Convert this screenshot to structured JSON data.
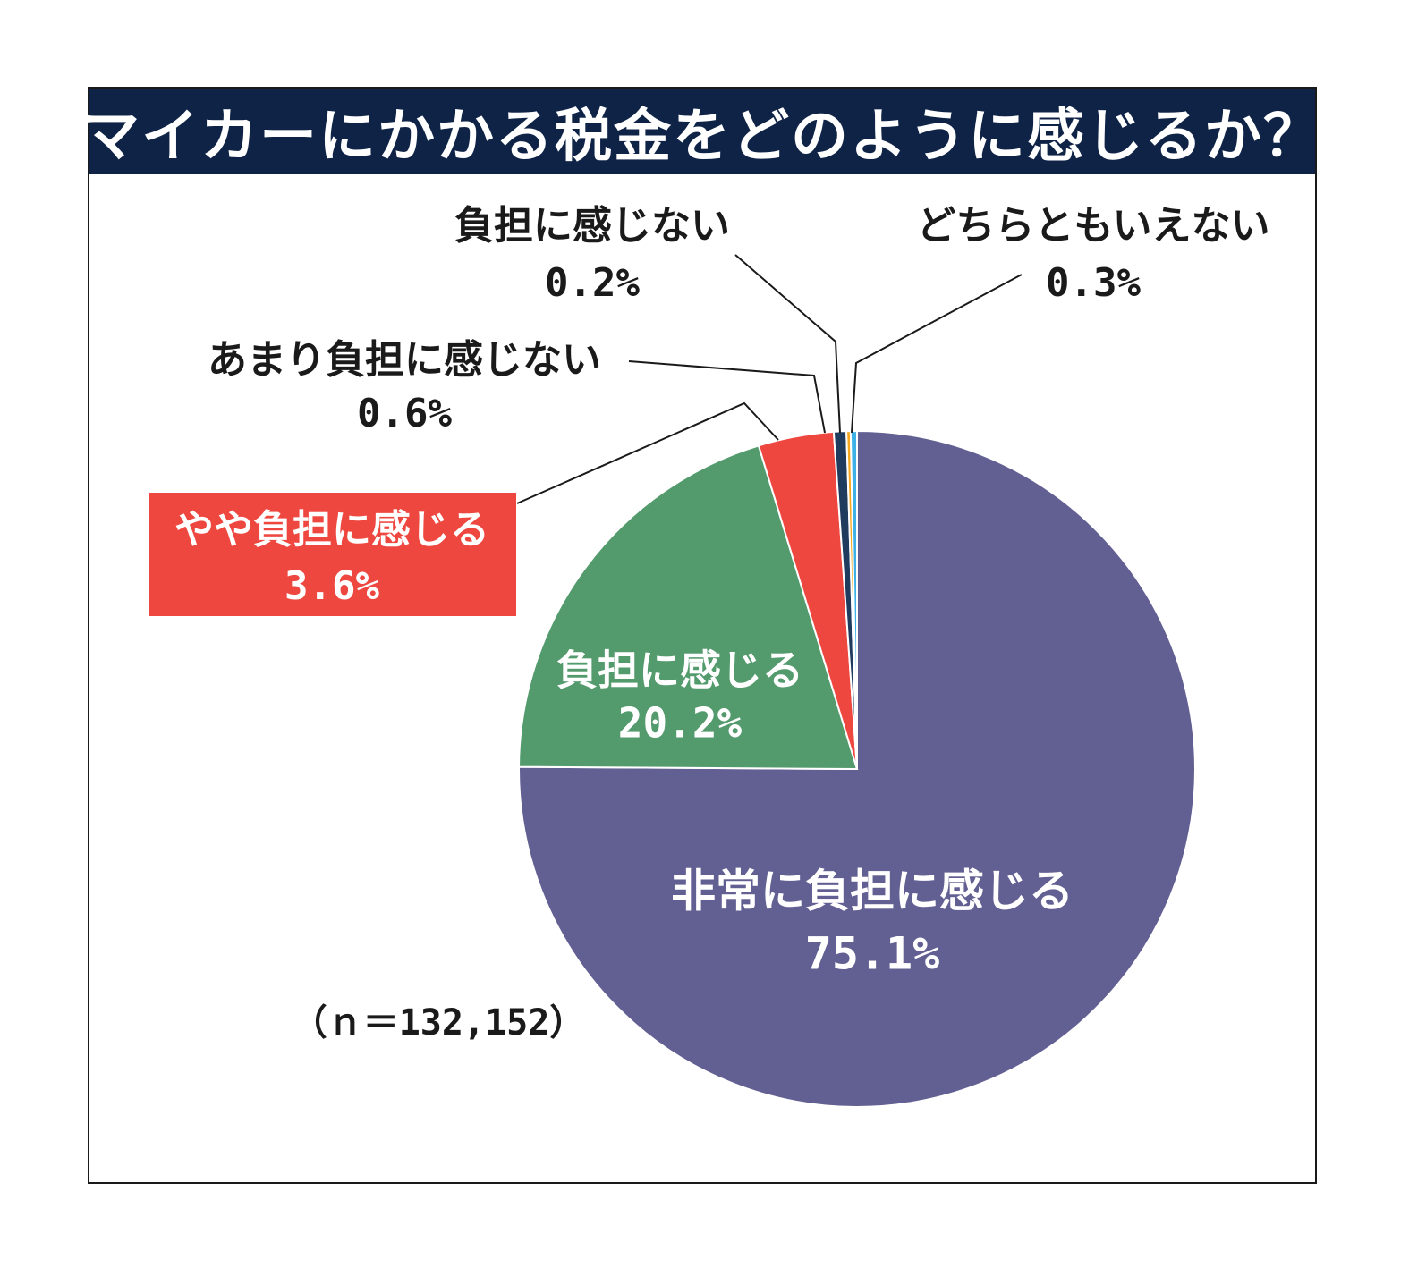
{
  "colors": {
    "title_bg": "#0f2347",
    "title_text": "#ffffff",
    "text": "#1a1a1a",
    "inside_label_text": "#ffffff",
    "highlight_box": "#ee4740"
  },
  "title": "マイカーにかかる税金をどのように感じるか？",
  "sample_note": "（ｎ＝132,152）",
  "chart_data": {
    "type": "pie",
    "title": "マイカーにかかる税金をどのように感じるか？",
    "note": "（ｎ＝132,152）",
    "start": "12 o'clock",
    "direction": "clockwise",
    "slices": [
      {
        "label": "非常に負担に感じる",
        "value": 75.1,
        "display": "75.1%",
        "color": "#625f92",
        "label_position": "inside"
      },
      {
        "label": "負担に感じる",
        "value": 20.2,
        "display": "20.2%",
        "color": "#539a6d",
        "label_position": "inside"
      },
      {
        "label": "やや負担に感じる",
        "value": 3.6,
        "display": "3.6%",
        "color": "#ee4740",
        "label_position": "callout-highlighted"
      },
      {
        "label": "あまり負担に感じない",
        "value": 0.6,
        "display": "0.6%",
        "color": "#1f3b5e",
        "label_position": "callout"
      },
      {
        "label": "負担に感じない",
        "value": 0.2,
        "display": "0.2%",
        "color": "#f4a81f",
        "label_position": "callout"
      },
      {
        "label": "どちらともいえない",
        "value": 0.3,
        "display": "0.3%",
        "color": "#3eb2e6",
        "label_position": "callout"
      }
    ]
  }
}
